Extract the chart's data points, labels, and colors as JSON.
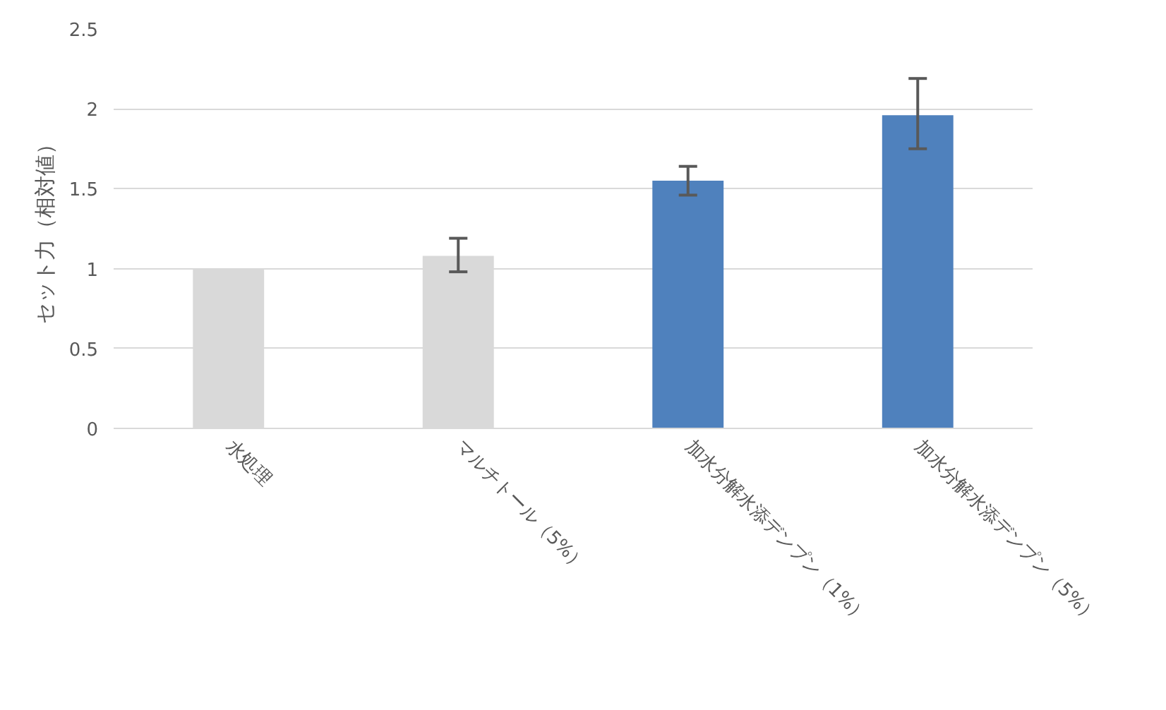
{
  "chart_data": {
    "type": "bar",
    "ylabel": "セット力（相対値）",
    "categories": [
      "水処理",
      "マルチトール（5%）",
      "加水分解水添デンプン（1%）",
      "加水分解水添デンプン（5%）"
    ],
    "values": [
      1.0,
      1.08,
      1.55,
      1.96
    ],
    "colors": [
      "#d9d9d9",
      "#d9d9d9",
      "#4f81bd",
      "#4f81bd"
    ],
    "errors": [
      null,
      [
        0.98,
        1.19
      ],
      [
        1.46,
        1.64
      ],
      [
        1.75,
        2.19
      ]
    ],
    "ylim": [
      0,
      2.5
    ],
    "yticks": [
      0,
      {
        "value": 0.5,
        "label": "0.5"
      },
      1,
      {
        "value": 1.5,
        "label": "1.5"
      },
      2,
      {
        "value": 2.5,
        "label": "2.5"
      }
    ],
    "grid": "y"
  }
}
